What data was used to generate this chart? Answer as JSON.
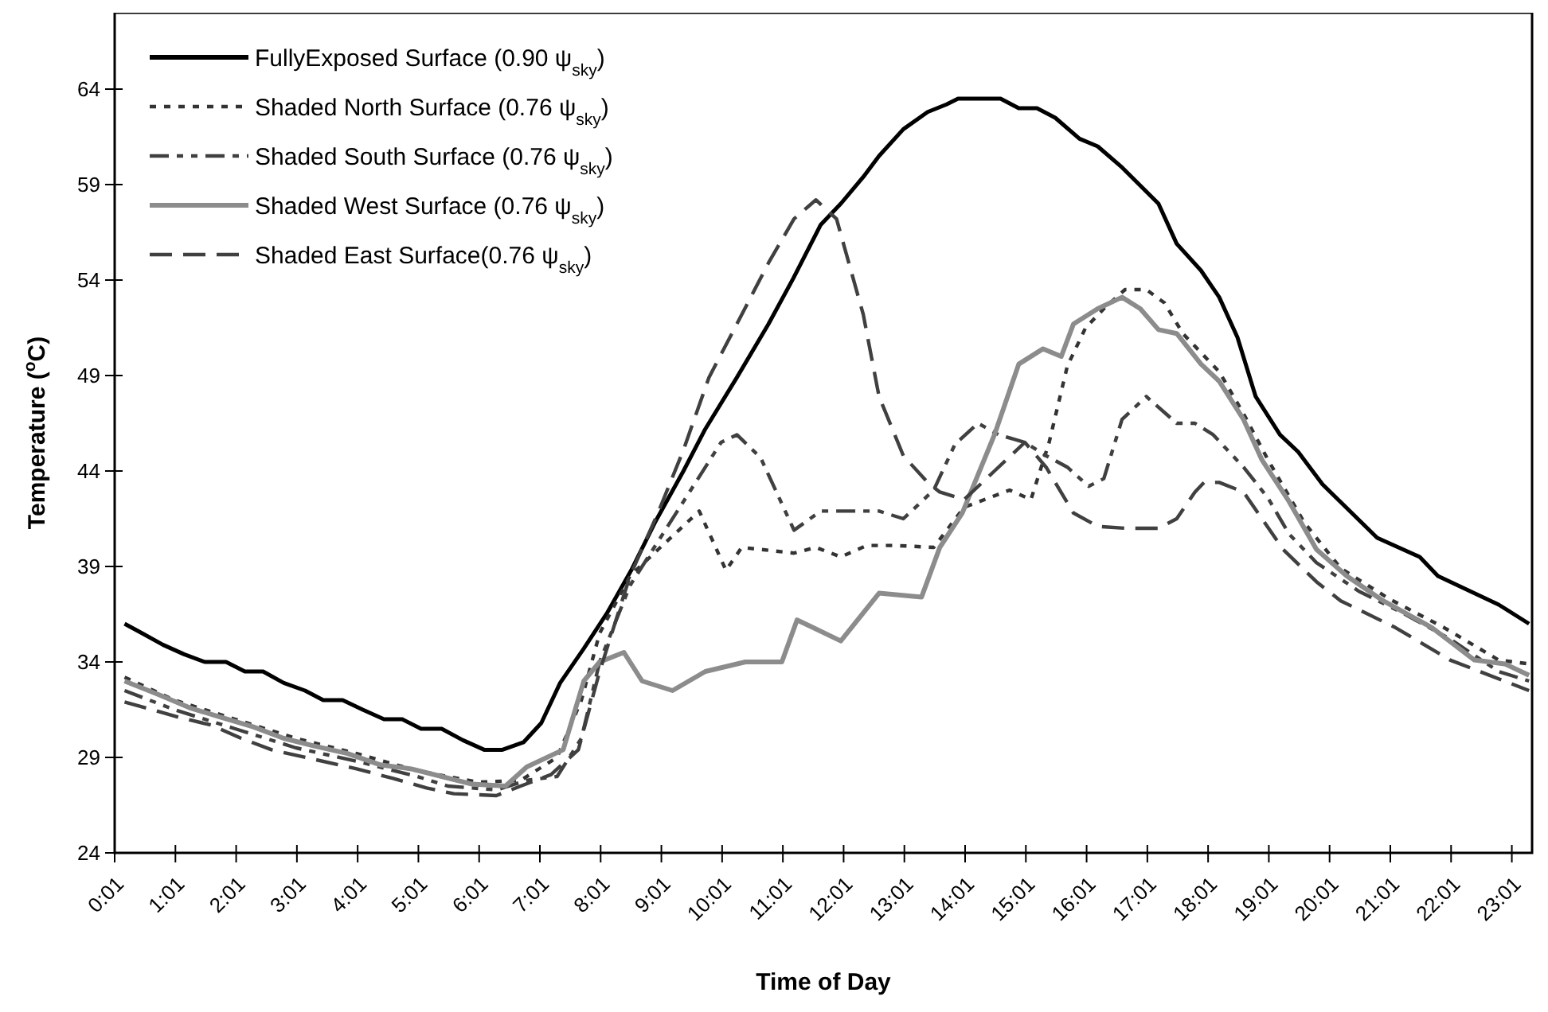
{
  "chart_data": {
    "type": "line",
    "xlabel": "Time of Day",
    "ylabel": "Temperature ($^{o}$C)",
    "xlim": [
      0.0167,
      23.35
    ],
    "ylim": [
      24,
      68
    ],
    "xticks": [
      {
        "value": 0.0167,
        "label": "0:01"
      },
      {
        "value": 1.0167,
        "label": "1:01"
      },
      {
        "value": 2.0167,
        "label": "2:01"
      },
      {
        "value": 3.0167,
        "label": "3:01"
      },
      {
        "value": 4.0167,
        "label": "4:01"
      },
      {
        "value": 5.0167,
        "label": "5:01"
      },
      {
        "value": 6.0167,
        "label": "6:01"
      },
      {
        "value": 7.0167,
        "label": "7:01"
      },
      {
        "value": 8.0167,
        "label": "8:01"
      },
      {
        "value": 9.0167,
        "label": "9:01"
      },
      {
        "value": 10.0167,
        "label": "10:01"
      },
      {
        "value": 11.0167,
        "label": "11:01"
      },
      {
        "value": 12.0167,
        "label": "12:01"
      },
      {
        "value": 13.0167,
        "label": "13:01"
      },
      {
        "value": 14.0167,
        "label": "14:01"
      },
      {
        "value": 15.0167,
        "label": "15:01"
      },
      {
        "value": 16.0167,
        "label": "16:01"
      },
      {
        "value": 17.0167,
        "label": "17:01"
      },
      {
        "value": 18.0167,
        "label": "18:01"
      },
      {
        "value": 19.0167,
        "label": "19:01"
      },
      {
        "value": 20.0167,
        "label": "20:01"
      },
      {
        "value": 21.0167,
        "label": "21:01"
      },
      {
        "value": 22.0167,
        "label": "22:01"
      },
      {
        "value": 23.0167,
        "label": "23:01"
      }
    ],
    "yticks": [
      24,
      29,
      34,
      39,
      44,
      49,
      54,
      59,
      64
    ],
    "grid": false,
    "legend": "top left",
    "series": [
      {
        "name": "FullyExposed Surface (0.90 ψ$_{sky}$)",
        "color": "#000000",
        "line_style": "solid",
        "x": [
          0.18,
          0.47,
          0.81,
          1.16,
          1.5,
          1.85,
          2.16,
          2.46,
          2.8,
          3.15,
          3.45,
          3.77,
          4.1,
          4.45,
          4.75,
          5.06,
          5.4,
          5.75,
          6.1,
          6.4,
          6.75,
          7.04,
          7.35,
          7.74,
          8.13,
          8.52,
          8.91,
          9.38,
          9.74,
          10.26,
          10.78,
          11.19,
          11.64,
          11.97,
          12.34,
          12.6,
          13.0,
          13.4,
          13.71,
          13.9,
          14.6,
          14.9,
          15.2,
          15.5,
          15.9,
          16.2,
          16.6,
          17.2,
          17.5,
          17.9,
          18.2,
          18.5,
          18.8,
          19.2,
          19.5,
          19.9,
          20.8,
          21.5,
          21.8,
          22.8,
          23.3
        ],
        "values": [
          36.0,
          35.5,
          34.9,
          34.4,
          34.0,
          34.0,
          33.5,
          33.5,
          32.9,
          32.5,
          32.0,
          32.0,
          31.5,
          31.0,
          31.0,
          30.5,
          30.5,
          29.9,
          29.4,
          29.4,
          29.8,
          30.8,
          32.9,
          34.7,
          36.6,
          38.8,
          41.3,
          44.0,
          46.2,
          48.9,
          51.7,
          54.1,
          56.9,
          58.0,
          59.4,
          60.5,
          61.9,
          62.8,
          63.2,
          63.5,
          63.5,
          63.0,
          63.0,
          62.5,
          61.4,
          61.0,
          59.9,
          58.0,
          55.9,
          54.5,
          53.1,
          51.0,
          47.9,
          45.9,
          45.0,
          43.3,
          40.5,
          39.5,
          38.5,
          37.0,
          36.0
        ]
      },
      {
        "name": "Shaded North Surface (0.76 ψ$_{sky}$)",
        "color": "#333333",
        "line_style": "dotted",
        "x": [
          0.18,
          1,
          2,
          3,
          4,
          5,
          6,
          6.7,
          7.3,
          7.7,
          8.0,
          8.5,
          9.0,
          9.64,
          10.08,
          10.34,
          11.2,
          11.56,
          11.97,
          12.4,
          12.86,
          13.5,
          14.0,
          14.75,
          15.1,
          15.4,
          15.7,
          16.0,
          16.3,
          16.65,
          17.0,
          17.3,
          17.6,
          18.2,
          18.6,
          19.0,
          19.6,
          20.2,
          21.0,
          21.9,
          22.8,
          23.3
        ],
        "values": [
          33.2,
          32.0,
          31.0,
          30.0,
          29.2,
          28.3,
          27.7,
          27.8,
          29.0,
          32.0,
          35.5,
          38.5,
          40.0,
          41.9,
          38.8,
          40.0,
          39.7,
          40.0,
          39.5,
          40.1,
          40.1,
          40.0,
          42.1,
          43.0,
          42.5,
          45.5,
          49.5,
          51.5,
          52.5,
          53.5,
          53.5,
          52.8,
          51.2,
          49.2,
          47.0,
          44.6,
          41.3,
          38.9,
          37.3,
          35.8,
          34.1,
          33.9
        ]
      },
      {
        "name": "Shaded South Surface (0.76 ψ$_{sky}$)",
        "color": "#404040",
        "line_style": "dashdot",
        "x": [
          0.18,
          1,
          2,
          3,
          4,
          5,
          5.5,
          6.3,
          6.8,
          7.3,
          7.7,
          8.0,
          8.5,
          9.0,
          9.5,
          10.0,
          10.26,
          10.65,
          11.2,
          11.64,
          12.6,
          13.0,
          13.5,
          13.85,
          14.23,
          14.57,
          15.0,
          15.35,
          15.7,
          16.05,
          16.3,
          16.6,
          17.0,
          17.5,
          17.8,
          18.1,
          18.6,
          19.0,
          19.35,
          19.8,
          20.5,
          21.2,
          22.0,
          22.8,
          23.3
        ],
        "values": [
          32.5,
          31.5,
          30.5,
          29.5,
          28.8,
          28.0,
          27.5,
          27.3,
          27.8,
          28.0,
          30.0,
          34.0,
          38.0,
          40.5,
          43.0,
          45.5,
          45.9,
          44.7,
          40.9,
          41.9,
          41.9,
          41.5,
          43.0,
          45.4,
          46.5,
          45.9,
          45.5,
          44.8,
          44.2,
          43.2,
          43.6,
          46.7,
          47.9,
          46.5,
          46.5,
          45.9,
          44.2,
          42.6,
          40.7,
          39.2,
          37.7,
          36.6,
          35.2,
          33.5,
          33.0
        ]
      },
      {
        "name": "Shaded West Surface (0.76 ψ$_{sky}$)",
        "color": "#8c8c8c",
        "line_style": "solid",
        "x": [
          0.18,
          0.73,
          1.25,
          1.77,
          2.3,
          2.8,
          3.3,
          3.85,
          4.4,
          4.9,
          5.4,
          5.9,
          6.45,
          6.8,
          7.4,
          7.74,
          8.0,
          8.4,
          8.7,
          9.2,
          9.74,
          10.4,
          11.0,
          11.25,
          11.97,
          12.6,
          13.3,
          13.6,
          13.97,
          14.5,
          14.9,
          15.3,
          15.6,
          15.8,
          16.2,
          16.6,
          16.9,
          17.2,
          17.5,
          17.9,
          18.2,
          18.6,
          18.9,
          19.35,
          19.8,
          20.3,
          20.9,
          21.7,
          22.4,
          22.9,
          23.3
        ],
        "values": [
          33.0,
          32.3,
          31.6,
          31.1,
          30.6,
          30.0,
          29.6,
          29.2,
          28.6,
          28.4,
          28.0,
          27.6,
          27.5,
          28.5,
          29.4,
          33.0,
          34.0,
          34.5,
          33.0,
          32.5,
          33.5,
          34.0,
          34.0,
          36.2,
          35.1,
          37.6,
          37.4,
          40.0,
          41.8,
          45.9,
          49.6,
          50.4,
          50.0,
          51.7,
          52.5,
          53.1,
          52.5,
          51.4,
          51.2,
          49.6,
          48.7,
          46.7,
          44.6,
          42.4,
          39.9,
          38.5,
          37.2,
          35.8,
          34.1,
          33.9,
          33.3
        ]
      },
      {
        "name": "Shaded East Surface(0.76 ψ$_{sky}$)",
        "color": "#404040",
        "line_style": "dashed",
        "x": [
          0.18,
          0.64,
          1.07,
          1.6,
          2.1,
          2.6,
          3.3,
          4.0,
          4.6,
          5.15,
          5.6,
          6.3,
          6.7,
          7.2,
          7.65,
          8.0,
          8.5,
          8.96,
          9.38,
          9.8,
          10.26,
          10.78,
          11.2,
          11.56,
          11.9,
          12.34,
          12.6,
          13.0,
          13.4,
          13.6,
          14.0,
          14.5,
          15.0,
          15.35,
          15.8,
          16.2,
          16.65,
          17.2,
          17.5,
          17.8,
          17.95,
          18.2,
          18.6,
          19.25,
          19.8,
          20.2,
          21.1,
          22.0,
          23.3
        ],
        "values": [
          31.9,
          31.5,
          31.1,
          30.7,
          30.0,
          29.4,
          28.9,
          28.4,
          27.9,
          27.4,
          27.1,
          27.0,
          27.5,
          28.1,
          29.4,
          33.5,
          38.5,
          41.8,
          45.1,
          48.9,
          51.7,
          54.9,
          57.2,
          58.2,
          57.2,
          52.2,
          47.9,
          44.8,
          43.4,
          42.9,
          42.5,
          44.0,
          45.5,
          44.2,
          41.8,
          41.1,
          41.0,
          41.0,
          41.5,
          42.9,
          43.4,
          43.4,
          42.9,
          39.9,
          38.2,
          37.2,
          35.8,
          34.1,
          32.5
        ]
      }
    ]
  }
}
